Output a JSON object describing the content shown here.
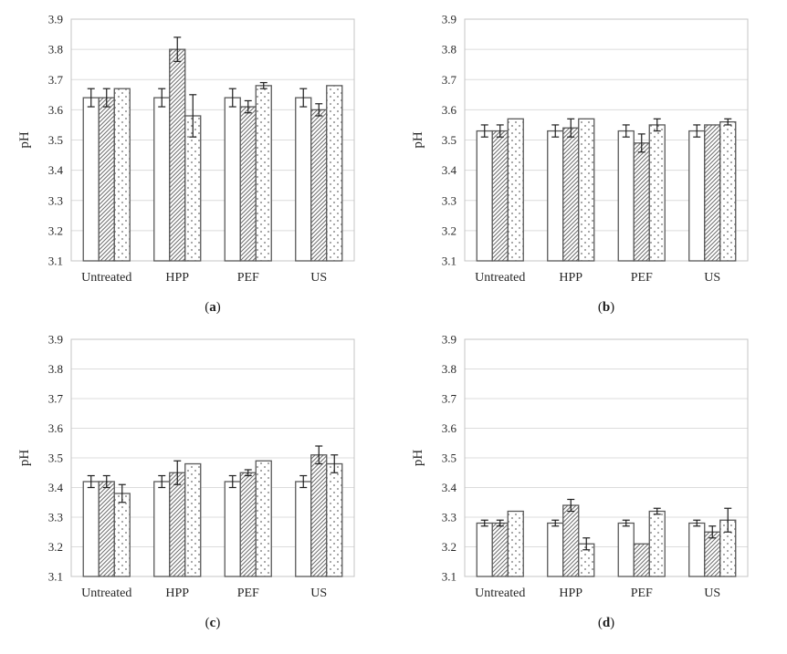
{
  "page": {
    "background": "#ffffff"
  },
  "styles": {
    "bar_border": "#595959",
    "error_bar": "#1f1f1f",
    "gridline": "#dcdcdc",
    "frame": "#c4c4c4",
    "text": "#262626",
    "pattern_ink": "#6e6e6e"
  },
  "chart_data": [
    {
      "type": "bar",
      "id": "a",
      "caption": {
        "open": "(",
        "letter": "a",
        "close": ")"
      },
      "ylabel": "pH",
      "ylim": [
        3.1,
        3.9
      ],
      "ytick_step": 0.1,
      "yticks": [
        "3.1",
        "3.2",
        "3.3",
        "3.4",
        "3.5",
        "3.6",
        "3.7",
        "3.8",
        "3.9"
      ],
      "categories": [
        "Untreated",
        "HPP",
        "PEF",
        "US"
      ],
      "grid": true,
      "legend": "none",
      "series": [
        {
          "name": "series-1",
          "pattern": "plain",
          "values": [
            3.64,
            3.64,
            3.64,
            3.64
          ],
          "errors": [
            0.03,
            0.03,
            0.03,
            0.03
          ]
        },
        {
          "name": "series-2",
          "pattern": "diagonal-hatch",
          "values": [
            3.64,
            3.8,
            3.61,
            3.6
          ],
          "errors": [
            0.03,
            0.04,
            0.02,
            0.02
          ]
        },
        {
          "name": "series-3",
          "pattern": "dots",
          "values": [
            3.67,
            3.58,
            3.68,
            3.68
          ],
          "errors": [
            0,
            0.07,
            0.01,
            0
          ]
        }
      ]
    },
    {
      "type": "bar",
      "id": "b",
      "caption": {
        "open": "(",
        "letter": "b",
        "close": ")"
      },
      "ylabel": "pH",
      "ylim": [
        3.1,
        3.9
      ],
      "ytick_step": 0.1,
      "yticks": [
        "3.1",
        "3.2",
        "3.3",
        "3.4",
        "3.5",
        "3.6",
        "3.7",
        "3.8",
        "3.9"
      ],
      "categories": [
        "Untreated",
        "HPP",
        "PEF",
        "US"
      ],
      "grid": true,
      "legend": "none",
      "series": [
        {
          "name": "series-1",
          "pattern": "plain",
          "values": [
            3.53,
            3.53,
            3.53,
            3.53
          ],
          "errors": [
            0.02,
            0.02,
            0.02,
            0.02
          ]
        },
        {
          "name": "series-2",
          "pattern": "diagonal-hatch",
          "values": [
            3.53,
            3.54,
            3.49,
            3.55
          ],
          "errors": [
            0.02,
            0.03,
            0.03,
            0
          ]
        },
        {
          "name": "series-3",
          "pattern": "dots",
          "values": [
            3.57,
            3.57,
            3.55,
            3.56
          ],
          "errors": [
            0,
            0,
            0.02,
            0.01
          ]
        }
      ]
    },
    {
      "type": "bar",
      "id": "c",
      "caption": {
        "open": "(",
        "letter": "c",
        "close": ")"
      },
      "ylabel": "pH",
      "ylim": [
        3.1,
        3.9
      ],
      "ytick_step": 0.1,
      "yticks": [
        "3.1",
        "3.2",
        "3.3",
        "3.4",
        "3.5",
        "3.6",
        "3.7",
        "3.8",
        "3.9"
      ],
      "categories": [
        "Untreated",
        "HPP",
        "PEF",
        "US"
      ],
      "grid": true,
      "legend": "none",
      "series": [
        {
          "name": "series-1",
          "pattern": "plain",
          "values": [
            3.42,
            3.42,
            3.42,
            3.42
          ],
          "errors": [
            0.02,
            0.02,
            0.02,
            0.02
          ]
        },
        {
          "name": "series-2",
          "pattern": "diagonal-hatch",
          "values": [
            3.42,
            3.45,
            3.45,
            3.51
          ],
          "errors": [
            0.02,
            0.04,
            0.01,
            0.03
          ]
        },
        {
          "name": "series-3",
          "pattern": "dots",
          "values": [
            3.38,
            3.48,
            3.49,
            3.48
          ],
          "errors": [
            0.03,
            0,
            0,
            0.03
          ]
        }
      ]
    },
    {
      "type": "bar",
      "id": "d",
      "caption": {
        "open": "(",
        "letter": "d",
        "close": ")"
      },
      "ylabel": "pH",
      "ylim": [
        3.1,
        3.9
      ],
      "ytick_step": 0.1,
      "yticks": [
        "3.1",
        "3.2",
        "3.3",
        "3.4",
        "3.5",
        "3.6",
        "3.7",
        "3.8",
        "3.9"
      ],
      "categories": [
        "Untreated",
        "HPP",
        "PEF",
        "US"
      ],
      "grid": true,
      "legend": "none",
      "series": [
        {
          "name": "series-1",
          "pattern": "plain",
          "values": [
            3.28,
            3.28,
            3.28,
            3.28
          ],
          "errors": [
            0.01,
            0.01,
            0.01,
            0.01
          ]
        },
        {
          "name": "series-2",
          "pattern": "diagonal-hatch",
          "values": [
            3.28,
            3.34,
            3.21,
            3.25
          ],
          "errors": [
            0.01,
            0.02,
            0,
            0.02
          ]
        },
        {
          "name": "series-3",
          "pattern": "dots",
          "values": [
            3.32,
            3.21,
            3.32,
            3.29
          ],
          "errors": [
            0,
            0.02,
            0.01,
            0.04
          ]
        }
      ]
    }
  ]
}
